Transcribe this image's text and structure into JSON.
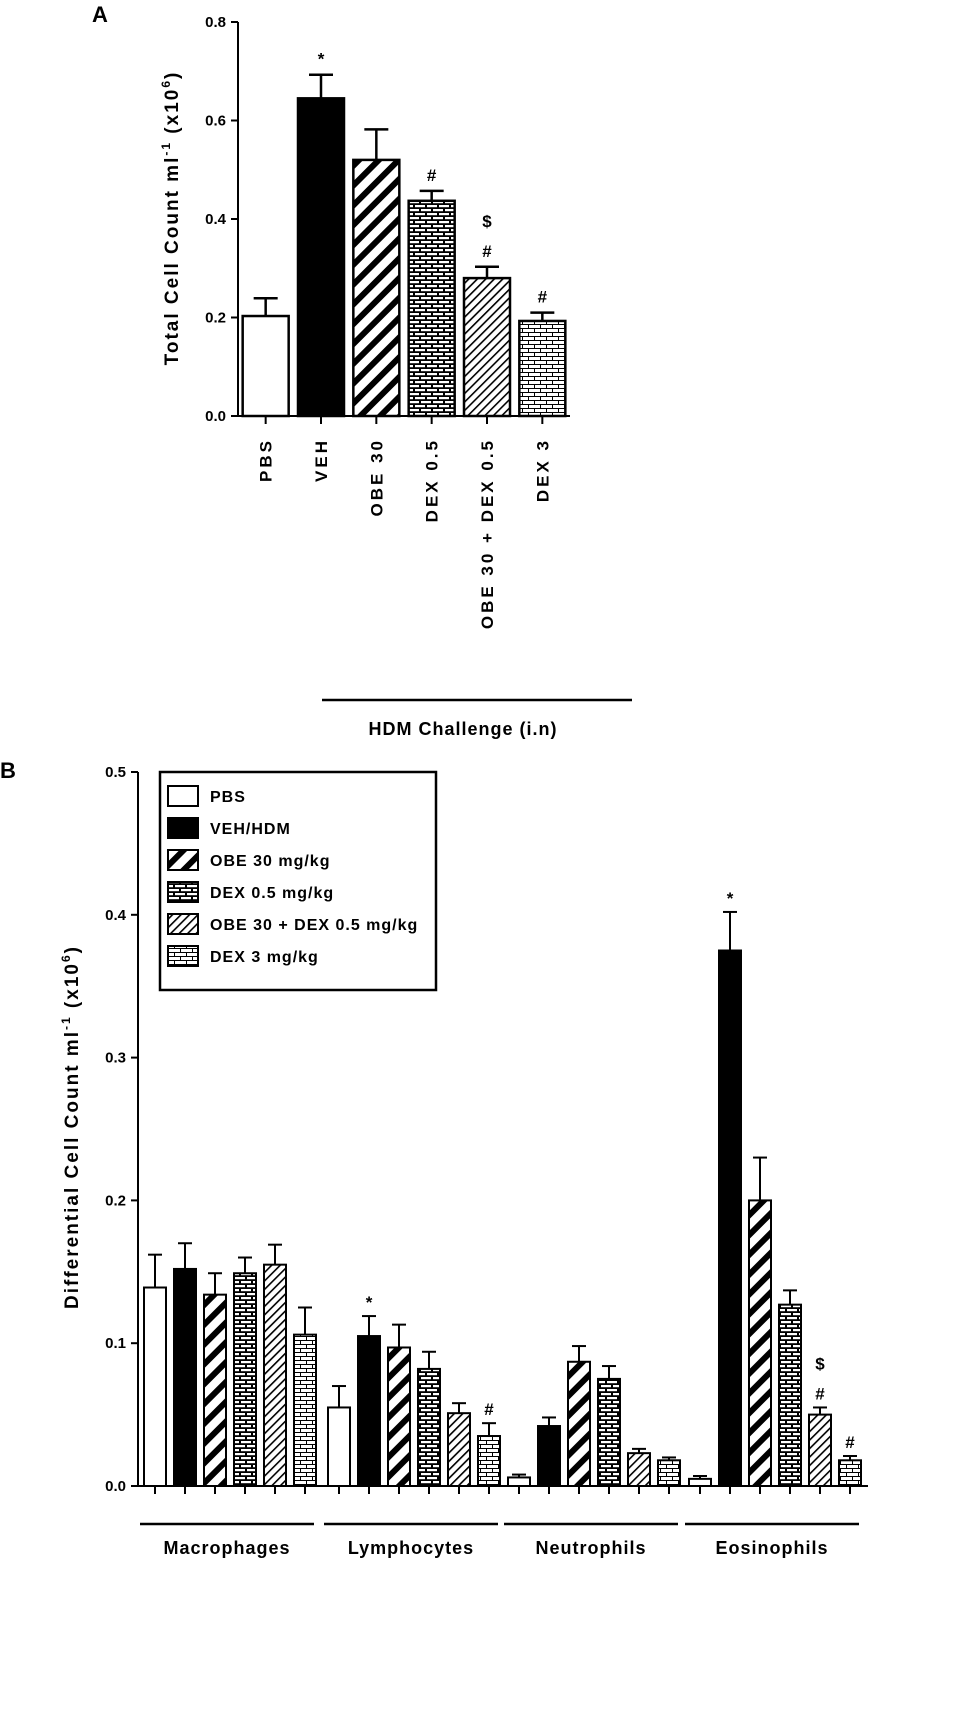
{
  "panel_a_label": "A",
  "panel_b_label": "B",
  "chart_data": [
    {
      "type": "bar",
      "title": "",
      "ylabel": "Total Cell Count ml",
      "ylabel_sup1": "-1",
      "ylabel_unit": "(x10",
      "ylabel_sup2": "6",
      "ylabel_close": ")",
      "ylim": [
        0,
        0.8
      ],
      "yticks": [
        "0.0",
        "0.2",
        "0.4",
        "0.6",
        "0.8"
      ],
      "categories": [
        "PBS",
        "VEH",
        "OBE 30",
        "DEX 0.5",
        "OBE 30 + DEX 0.5",
        "DEX 3"
      ],
      "values": [
        0.203,
        0.645,
        0.52,
        0.437,
        0.28,
        0.193
      ],
      "errors": [
        0.036,
        0.048,
        0.062,
        0.02,
        0.023,
        0.017
      ],
      "fills": [
        "white",
        "black",
        "diag-wide",
        "brick",
        "diag-fine",
        "brick-light"
      ],
      "significance": [
        "",
        "*",
        "",
        "#",
        "$\n#",
        "#"
      ],
      "group_label": "HDM Challenge (i.n)"
    },
    {
      "type": "bar",
      "title": "",
      "ylabel": "Differential Cell Count ml",
      "ylabel_sup1": "-1",
      "ylabel_unit": "(x10",
      "ylabel_sup2": "6",
      "ylabel_close": ")",
      "ylim": [
        0,
        0.5
      ],
      "yticks": [
        "0.0",
        "0.1",
        "0.2",
        "0.3",
        "0.4",
        "0.5"
      ],
      "categories": [
        "Macrophages",
        "Lymphocytes",
        "Neutrophils",
        "Eosinophils"
      ],
      "legend_position": "top-left",
      "series": [
        {
          "name": "PBS",
          "fill": "white",
          "values": [
            0.139,
            0.055,
            0.006,
            0.005
          ],
          "errors": [
            0.023,
            0.015,
            0.002,
            0.002
          ],
          "significance": [
            "",
            "",
            "",
            ""
          ]
        },
        {
          "name": "VEH/HDM",
          "fill": "black",
          "values": [
            0.152,
            0.105,
            0.042,
            0.375
          ],
          "errors": [
            0.018,
            0.014,
            0.006,
            0.027
          ],
          "significance": [
            "",
            "*",
            "",
            "*"
          ]
        },
        {
          "name": "OBE 30 mg/kg",
          "fill": "diag-wide",
          "values": [
            0.134,
            0.097,
            0.087,
            0.2
          ],
          "errors": [
            0.015,
            0.016,
            0.011,
            0.03
          ],
          "significance": [
            "",
            "",
            "",
            ""
          ]
        },
        {
          "name": "DEX 0.5 mg/kg",
          "fill": "brick",
          "values": [
            0.149,
            0.082,
            0.075,
            0.127
          ],
          "errors": [
            0.011,
            0.012,
            0.009,
            0.01
          ],
          "significance": [
            "",
            "",
            "",
            ""
          ]
        },
        {
          "name": "OBE 30 + DEX 0.5 mg/kg",
          "fill": "diag-fine",
          "values": [
            0.155,
            0.051,
            0.023,
            0.05
          ],
          "errors": [
            0.014,
            0.007,
            0.003,
            0.005
          ],
          "significance": [
            "",
            "",
            "",
            "$\n#"
          ]
        },
        {
          "name": "DEX 3 mg/kg",
          "fill": "brick-light",
          "values": [
            0.106,
            0.035,
            0.018,
            0.018
          ],
          "errors": [
            0.019,
            0.009,
            0.002,
            0.003
          ],
          "significance": [
            "",
            "#",
            "",
            "#"
          ]
        }
      ]
    }
  ]
}
